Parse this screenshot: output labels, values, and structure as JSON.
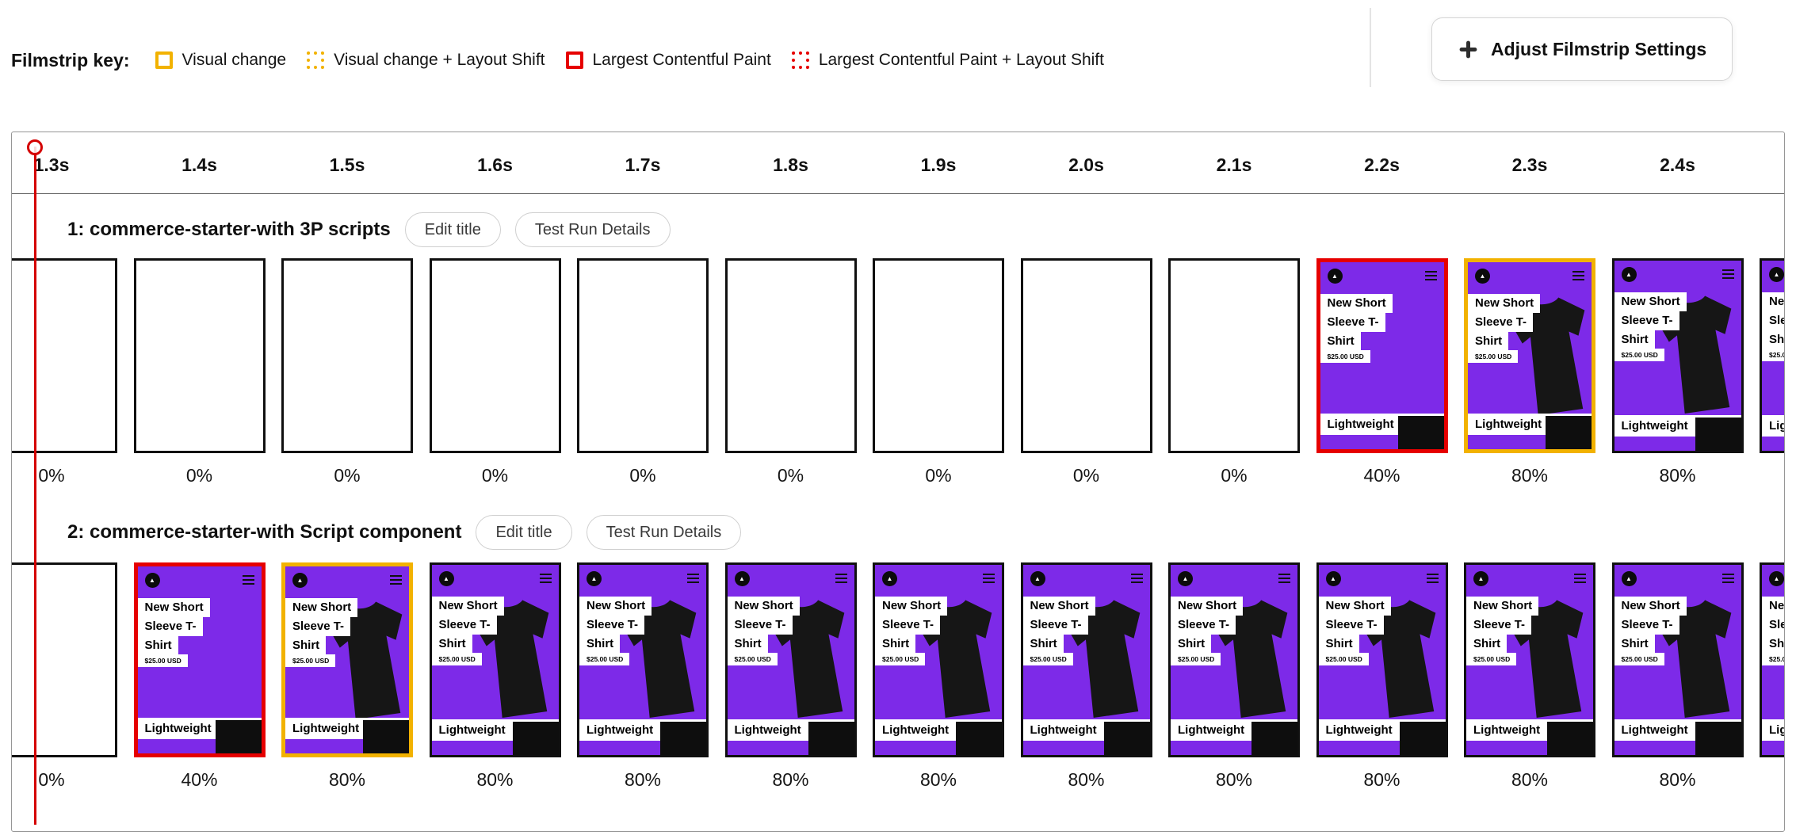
{
  "colors": {
    "visual_change": "#F2B200",
    "lcp": "#E60000",
    "playhead": "#D40000",
    "thumbnail_background": "#7D2AE8"
  },
  "filmstrip_key": {
    "label": "Filmstrip key:",
    "items": [
      {
        "name": "visual-change",
        "label": "Visual change",
        "color": "#F2B200",
        "border_style": "solid"
      },
      {
        "name": "visual-change-layout-shift",
        "label": "Visual change + Layout Shift",
        "color": "#F2B200",
        "border_style": "dotted"
      },
      {
        "name": "largest-contentful-paint",
        "label": "Largest Contentful Paint",
        "color": "#E60000",
        "border_style": "solid"
      },
      {
        "name": "largest-contentful-paint-layout-shift",
        "label": "Largest Contentful Paint + Layout Shift",
        "color": "#E60000",
        "border_style": "dotted"
      }
    ]
  },
  "settings_button": {
    "label": "Adjust Filmstrip Settings"
  },
  "timeline_ticks": [
    "1.3s",
    "1.4s",
    "1.5s",
    "1.6s",
    "1.7s",
    "1.8s",
    "1.9s",
    "2.0s",
    "2.1s",
    "2.2s",
    "2.3s",
    "2.4s"
  ],
  "thumbnail": {
    "logo_icon": "store-logo",
    "menu_icon": "hamburger-menu",
    "title_lines": [
      "New Short",
      "Sleeve T-",
      "Shirt"
    ],
    "price": "$25.00 USD",
    "footer_label": "Lightweight"
  },
  "runs": [
    {
      "title": "1: commerce-starter-with 3P scripts",
      "edit_title_button": "Edit title",
      "details_button": "Test Run Details",
      "frames": [
        {
          "time": "1.3s",
          "percent": "0%",
          "content": "blank",
          "marker": "none"
        },
        {
          "time": "1.4s",
          "percent": "0%",
          "content": "blank",
          "marker": "none"
        },
        {
          "time": "1.5s",
          "percent": "0%",
          "content": "blank",
          "marker": "none"
        },
        {
          "time": "1.6s",
          "percent": "0%",
          "content": "blank",
          "marker": "none"
        },
        {
          "time": "1.7s",
          "percent": "0%",
          "content": "blank",
          "marker": "none"
        },
        {
          "time": "1.8s",
          "percent": "0%",
          "content": "blank",
          "marker": "none"
        },
        {
          "time": "1.9s",
          "percent": "0%",
          "content": "blank",
          "marker": "none"
        },
        {
          "time": "2.0s",
          "percent": "0%",
          "content": "blank",
          "marker": "none"
        },
        {
          "time": "2.1s",
          "percent": "0%",
          "content": "blank",
          "marker": "none"
        },
        {
          "time": "2.2s",
          "percent": "40%",
          "content": "page-no-image",
          "marker": "lcp"
        },
        {
          "time": "2.3s",
          "percent": "80%",
          "content": "page-full",
          "marker": "visual-change"
        },
        {
          "time": "2.4s",
          "percent": "80%",
          "content": "page-full",
          "marker": "none"
        },
        {
          "time": "",
          "percent": "",
          "content": "page-full",
          "marker": "none",
          "partial": true
        }
      ]
    },
    {
      "title": "2: commerce-starter-with Script component",
      "edit_title_button": "Edit title",
      "details_button": "Test Run Details",
      "frames": [
        {
          "time": "1.3s",
          "percent": "0%",
          "content": "blank",
          "marker": "none"
        },
        {
          "time": "1.4s",
          "percent": "40%",
          "content": "page-no-image",
          "marker": "lcp"
        },
        {
          "time": "1.5s",
          "percent": "80%",
          "content": "page-full",
          "marker": "visual-change"
        },
        {
          "time": "1.6s",
          "percent": "80%",
          "content": "page-full",
          "marker": "none"
        },
        {
          "time": "1.7s",
          "percent": "80%",
          "content": "page-full",
          "marker": "none"
        },
        {
          "time": "1.8s",
          "percent": "80%",
          "content": "page-full",
          "marker": "none"
        },
        {
          "time": "1.9s",
          "percent": "80%",
          "content": "page-full",
          "marker": "none"
        },
        {
          "time": "2.0s",
          "percent": "80%",
          "content": "page-full",
          "marker": "none"
        },
        {
          "time": "2.1s",
          "percent": "80%",
          "content": "page-full",
          "marker": "none"
        },
        {
          "time": "2.2s",
          "percent": "80%",
          "content": "page-full",
          "marker": "none"
        },
        {
          "time": "2.3s",
          "percent": "80%",
          "content": "page-full",
          "marker": "none"
        },
        {
          "time": "2.4s",
          "percent": "80%",
          "content": "page-full",
          "marker": "none"
        },
        {
          "time": "",
          "percent": "",
          "content": "page-full",
          "marker": "none",
          "partial": true
        }
      ]
    }
  ]
}
